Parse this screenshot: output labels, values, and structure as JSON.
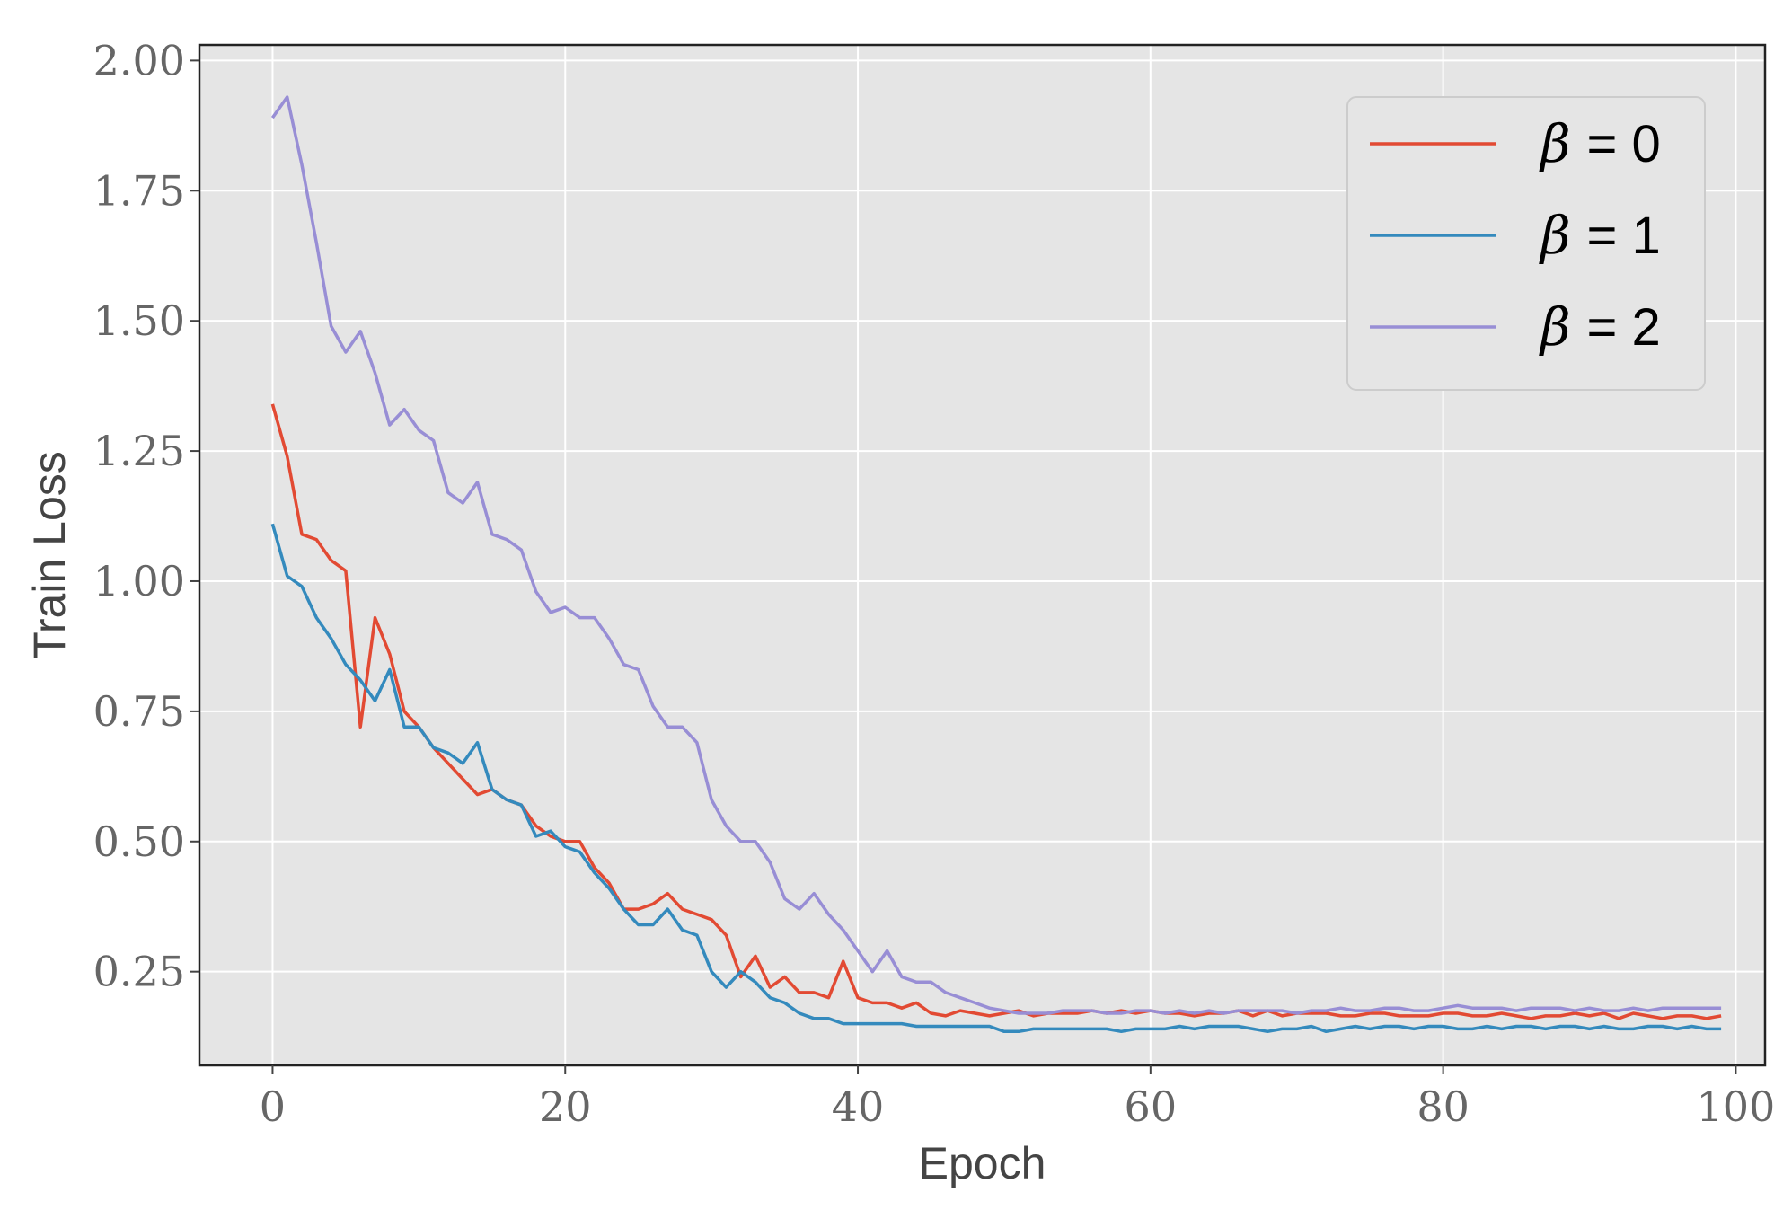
{
  "chart_data": {
    "type": "line",
    "title": "",
    "xlabel": "Epoch",
    "ylabel": "Train Loss",
    "xlim": [
      -5,
      102
    ],
    "ylim": [
      0.07,
      2.03
    ],
    "xticks": [
      0,
      20,
      40,
      60,
      80,
      100
    ],
    "xtick_labels": [
      "0",
      "20",
      "40",
      "60",
      "80",
      "100"
    ],
    "yticks": [
      0.25,
      0.5,
      0.75,
      1.0,
      1.25,
      1.5,
      1.75,
      2.0
    ],
    "ytick_labels": [
      "0.25",
      "0.50",
      "0.75",
      "1.00",
      "1.25",
      "1.50",
      "1.75",
      "2.00"
    ],
    "grid": true,
    "legend_position": "top-right",
    "x": [
      0,
      1,
      2,
      3,
      4,
      5,
      6,
      7,
      8,
      9,
      10,
      11,
      12,
      13,
      14,
      15,
      16,
      17,
      18,
      19,
      20,
      21,
      22,
      23,
      24,
      25,
      26,
      27,
      28,
      29,
      30,
      31,
      32,
      33,
      34,
      35,
      36,
      37,
      38,
      39,
      40,
      41,
      42,
      43,
      44,
      45,
      46,
      47,
      48,
      49,
      50,
      51,
      52,
      53,
      54,
      55,
      56,
      57,
      58,
      59,
      60,
      61,
      62,
      63,
      64,
      65,
      66,
      67,
      68,
      69,
      70,
      71,
      72,
      73,
      74,
      75,
      76,
      77,
      78,
      79,
      80,
      81,
      82,
      83,
      84,
      85,
      86,
      87,
      88,
      89,
      90,
      91,
      92,
      93,
      94,
      95,
      96,
      97,
      98,
      99
    ],
    "series": [
      {
        "name": "β = 0",
        "beta_symbol": "β",
        "label_suffix": "= 0",
        "color": "#e24a33",
        "values": [
          1.34,
          1.24,
          1.09,
          1.08,
          1.04,
          1.02,
          0.72,
          0.93,
          0.86,
          0.75,
          0.72,
          0.68,
          0.65,
          0.62,
          0.59,
          0.6,
          0.58,
          0.57,
          0.53,
          0.51,
          0.5,
          0.5,
          0.45,
          0.42,
          0.37,
          0.37,
          0.38,
          0.4,
          0.37,
          0.36,
          0.35,
          0.32,
          0.24,
          0.28,
          0.22,
          0.24,
          0.21,
          0.21,
          0.2,
          0.27,
          0.2,
          0.19,
          0.19,
          0.18,
          0.19,
          0.17,
          0.165,
          0.175,
          0.17,
          0.165,
          0.17,
          0.175,
          0.165,
          0.17,
          0.17,
          0.17,
          0.175,
          0.17,
          0.175,
          0.17,
          0.175,
          0.17,
          0.17,
          0.165,
          0.17,
          0.17,
          0.175,
          0.165,
          0.175,
          0.165,
          0.17,
          0.17,
          0.17,
          0.165,
          0.165,
          0.17,
          0.17,
          0.165,
          0.165,
          0.165,
          0.17,
          0.17,
          0.165,
          0.165,
          0.17,
          0.165,
          0.16,
          0.165,
          0.165,
          0.17,
          0.165,
          0.17,
          0.16,
          0.17,
          0.165,
          0.16,
          0.165,
          0.165,
          0.16,
          0.165
        ]
      },
      {
        "name": "β = 1",
        "beta_symbol": "β",
        "label_suffix": "= 1",
        "color": "#348abd",
        "values": [
          1.11,
          1.01,
          0.99,
          0.93,
          0.89,
          0.84,
          0.81,
          0.77,
          0.83,
          0.72,
          0.72,
          0.68,
          0.67,
          0.65,
          0.69,
          0.6,
          0.58,
          0.57,
          0.51,
          0.52,
          0.49,
          0.48,
          0.44,
          0.41,
          0.37,
          0.34,
          0.34,
          0.37,
          0.33,
          0.32,
          0.25,
          0.22,
          0.25,
          0.23,
          0.2,
          0.19,
          0.17,
          0.16,
          0.16,
          0.15,
          0.15,
          0.15,
          0.15,
          0.15,
          0.145,
          0.145,
          0.145,
          0.145,
          0.145,
          0.145,
          0.135,
          0.135,
          0.14,
          0.14,
          0.14,
          0.14,
          0.14,
          0.14,
          0.135,
          0.14,
          0.14,
          0.14,
          0.145,
          0.14,
          0.145,
          0.145,
          0.145,
          0.14,
          0.135,
          0.14,
          0.14,
          0.145,
          0.135,
          0.14,
          0.145,
          0.14,
          0.145,
          0.145,
          0.14,
          0.145,
          0.145,
          0.14,
          0.14,
          0.145,
          0.14,
          0.145,
          0.145,
          0.14,
          0.145,
          0.145,
          0.14,
          0.145,
          0.14,
          0.14,
          0.145,
          0.145,
          0.14,
          0.145,
          0.14,
          0.14
        ]
      },
      {
        "name": "β = 2",
        "beta_symbol": "β",
        "label_suffix": "= 2",
        "color": "#988ed5",
        "values": [
          1.89,
          1.93,
          1.8,
          1.65,
          1.49,
          1.44,
          1.48,
          1.4,
          1.3,
          1.33,
          1.29,
          1.27,
          1.17,
          1.15,
          1.19,
          1.09,
          1.08,
          1.06,
          0.98,
          0.94,
          0.95,
          0.93,
          0.93,
          0.89,
          0.84,
          0.83,
          0.76,
          0.72,
          0.72,
          0.69,
          0.58,
          0.53,
          0.5,
          0.5,
          0.46,
          0.39,
          0.37,
          0.4,
          0.36,
          0.33,
          0.29,
          0.25,
          0.29,
          0.24,
          0.23,
          0.23,
          0.21,
          0.2,
          0.19,
          0.18,
          0.175,
          0.17,
          0.17,
          0.17,
          0.175,
          0.175,
          0.175,
          0.17,
          0.17,
          0.175,
          0.175,
          0.17,
          0.175,
          0.17,
          0.175,
          0.17,
          0.175,
          0.175,
          0.175,
          0.175,
          0.17,
          0.175,
          0.175,
          0.18,
          0.175,
          0.175,
          0.18,
          0.18,
          0.175,
          0.175,
          0.18,
          0.185,
          0.18,
          0.18,
          0.18,
          0.175,
          0.18,
          0.18,
          0.18,
          0.175,
          0.18,
          0.175,
          0.175,
          0.18,
          0.175,
          0.18,
          0.18,
          0.18,
          0.18,
          0.18
        ]
      }
    ]
  },
  "theme": {
    "plot_background": "#e5e5e5",
    "grid_color": "#ffffff",
    "frame_color": "#222222",
    "legend_background": "#e5e5e5",
    "legend_border": "#cccccc"
  }
}
